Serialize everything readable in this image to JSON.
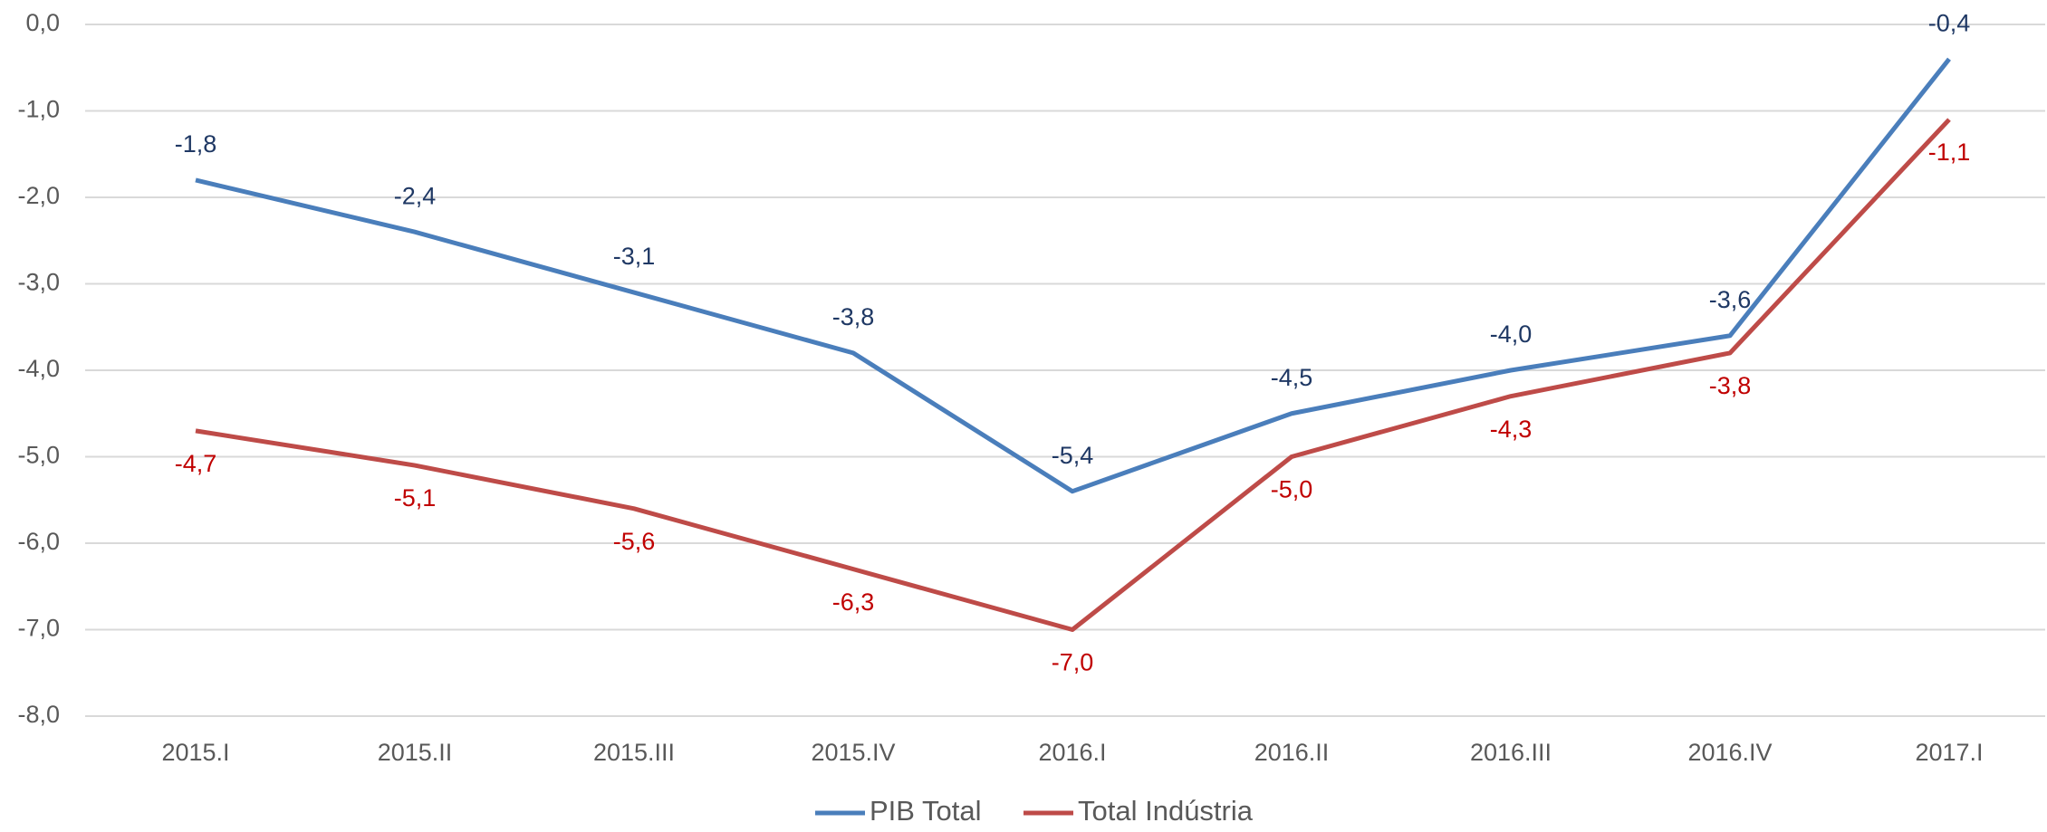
{
  "chart_data": {
    "type": "line",
    "categories": [
      "2015.I",
      "2015.II",
      "2015.III",
      "2015.IV",
      "2016.I",
      "2016.II",
      "2016.III",
      "2016.IV",
      "2017.I"
    ],
    "series": [
      {
        "name": "PIB Total",
        "color": "#4a7ebb",
        "label_color": "#1f3864",
        "values": [
          -1.8,
          -2.4,
          -3.1,
          -3.8,
          -5.4,
          -4.5,
          -4.0,
          -3.6,
          -0.4
        ],
        "value_labels": [
          "-1,8",
          "-2,4",
          "-3,1",
          "-3,8",
          "-5,4",
          "-4,5",
          "-4,0",
          "-3,6",
          "-0,4"
        ]
      },
      {
        "name": "Total Indústria",
        "color": "#be4b48",
        "label_color": "#c00000",
        "values": [
          -4.7,
          -5.1,
          -5.6,
          -6.3,
          -7.0,
          -5.0,
          -4.3,
          -3.8,
          -1.1
        ],
        "value_labels": [
          "-4,7",
          "-5,1",
          "-5,6",
          "-6,3",
          "-7,0",
          "-5,0",
          "-4,3",
          "-3,8",
          "-1,1"
        ]
      }
    ],
    "ylim": [
      -8,
      0
    ],
    "yticks": [
      {
        "value": 0,
        "label": "0,0"
      },
      {
        "value": -1,
        "label": "-1,0"
      },
      {
        "value": -2,
        "label": "-2,0"
      },
      {
        "value": -3,
        "label": "-3,0"
      },
      {
        "value": -4,
        "label": "-4,0"
      },
      {
        "value": -5,
        "label": "-5,0"
      },
      {
        "value": -6,
        "label": "-6,0"
      },
      {
        "value": -7,
        "label": "-7,0"
      },
      {
        "value": -8,
        "label": "-8,0"
      }
    ],
    "grid": true,
    "legend": "bottom"
  }
}
